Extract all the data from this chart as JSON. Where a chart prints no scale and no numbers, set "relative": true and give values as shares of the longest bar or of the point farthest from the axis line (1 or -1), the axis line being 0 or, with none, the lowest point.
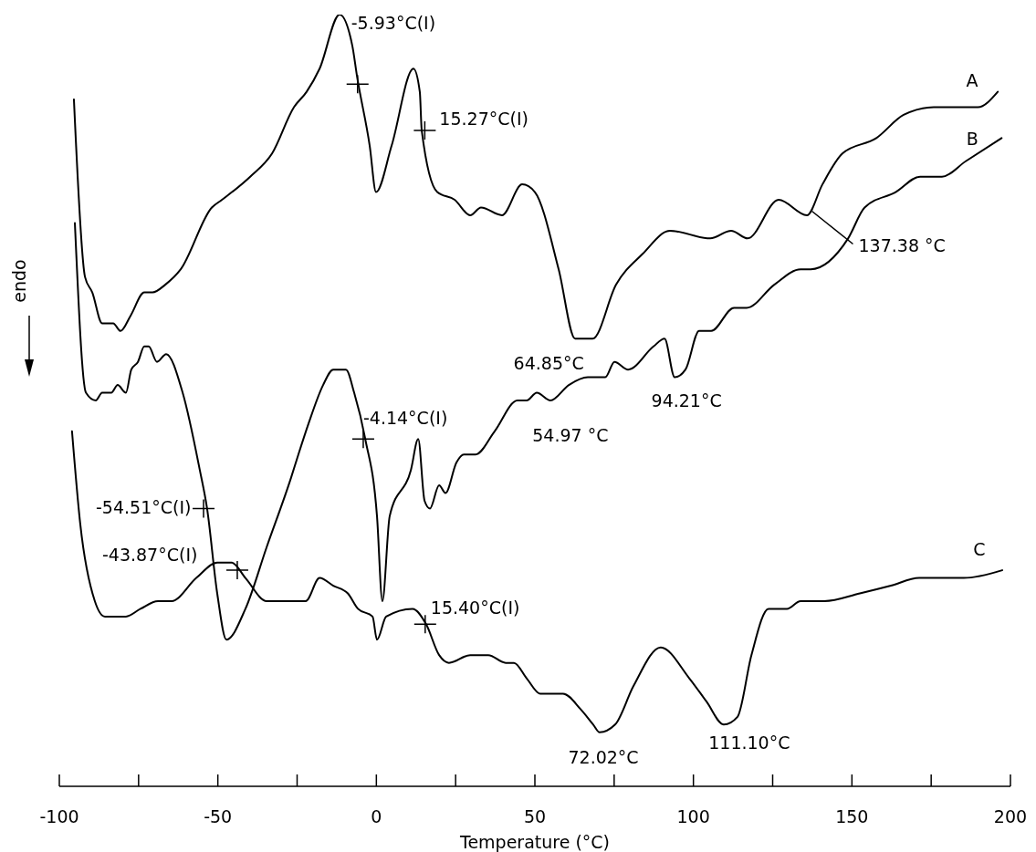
{
  "chart_data": {
    "type": "line",
    "relative": true,
    "xlabel": "Temperature (°C)",
    "ylabel": "endo",
    "xlim": [
      -100,
      200
    ],
    "xticks": [
      -100,
      {
        "value": -75,
        "label": null
      },
      -50,
      {
        "value": -25,
        "label": null
      },
      0,
      {
        "value": 25,
        "label": null
      },
      50,
      {
        "value": 75,
        "label": null
      },
      100,
      {
        "value": 125,
        "label": null
      },
      150,
      {
        "value": 175,
        "label": null
      },
      200
    ],
    "series": [
      {
        "name": "A",
        "color": "#000000",
        "x": [
          -95.4,
          -91.9,
          -89.6,
          -86.5,
          -83.0,
          -80.7,
          -77.5,
          -73.2,
          -70.6,
          -66.6,
          -61.7,
          -51.9,
          -48.7,
          -39.8,
          -32.9,
          -26.0,
          -22.0,
          -17.9,
          -11.6,
          -7.6,
          -6.1,
          -2.1,
          -0.1,
          4.8,
          11.7,
          13.7,
          14.3,
          19.2,
          24.7,
          29.6,
          33.0,
          39.6,
          46.0,
          50.0,
          57.5,
          62.7,
          65.6,
          68.2,
          75.6,
          84.0,
          92.6,
          105.3,
          111.9,
          117.1,
          126.9,
          135.8,
          140.7,
          147.0,
          157.7,
          166.3,
          175.8,
          189.7,
          196.0
        ],
        "values": [
          0.89,
          0.66,
          0.64,
          0.6,
          0.6,
          0.59,
          0.61,
          0.64,
          0.64,
          0.65,
          0.67,
          0.75,
          0.76,
          0.79,
          0.82,
          0.88,
          0.9,
          0.93,
          1,
          0.96,
          0.92,
          0.83,
          0.77,
          0.83,
          0.93,
          0.9,
          0.85,
          0.77,
          0.76,
          0.74,
          0.75,
          0.74,
          0.78,
          0.77,
          0.67,
          0.58,
          0.58,
          0.58,
          0.65,
          0.69,
          0.72,
          0.71,
          0.72,
          0.71,
          0.76,
          0.74,
          0.78,
          0.82,
          0.84,
          0.87,
          0.88,
          0.88,
          0.9
        ]
      },
      {
        "name": "B",
        "color": "#000000",
        "x": [
          -95.1,
          -91.6,
          -88.5,
          -86.5,
          -83.6,
          -81.6,
          -79.0,
          -77.3,
          -75.2,
          -73.2,
          -71.8,
          -69.2,
          -66.3,
          -61.1,
          -55.7,
          -53.4,
          -50.2,
          -47.3,
          -41.3,
          -34.6,
          -26.9,
          -24.6,
          -21.4,
          -16.8,
          -13.6,
          -9.6,
          -7.0,
          -3.5,
          0.2,
          1.9,
          4.2,
          10.9,
          13.2,
          15.2,
          16.9,
          19.8,
          21.8,
          25.3,
          27.6,
          31.3,
          37.3,
          44.5,
          47.4,
          50.6,
          54.9,
          60.7,
          66.7,
          72.2,
          75.1,
          79.4,
          87.4,
          90.9,
          94.1,
          97.5,
          101.8,
          105.6,
          112.8,
          116.8,
          125.5,
          133.8,
          137.0,
          148.8,
          154.0,
          163.8,
          171.5,
          178.4,
          185.9,
          197.2
        ],
        "values": [
          0.73,
          0.51,
          0.5,
          0.51,
          0.51,
          0.52,
          0.51,
          0.54,
          0.55,
          0.57,
          0.57,
          0.55,
          0.56,
          0.51,
          0.41,
          0.36,
          0.25,
          0.19,
          0.23,
          0.31,
          0.4,
          0.43,
          0.47,
          0.52,
          0.54,
          0.54,
          0.51,
          0.45,
          0.35,
          0.24,
          0.35,
          0.41,
          0.45,
          0.37,
          0.36,
          0.39,
          0.38,
          0.42,
          0.43,
          0.43,
          0.46,
          0.5,
          0.5,
          0.51,
          0.5,
          0.52,
          0.53,
          0.53,
          0.55,
          0.54,
          0.57,
          0.58,
          0.53,
          0.54,
          0.59,
          0.59,
          0.62,
          0.62,
          0.65,
          0.67,
          0.67,
          0.71,
          0.75,
          0.77,
          0.79,
          0.79,
          0.81,
          0.84
        ]
      },
      {
        "name": "C",
        "color": "#000000",
        "x": [
          -96.0,
          -93.4,
          -88.8,
          -85.6,
          -82.1,
          -79.0,
          -74.4,
          -68.9,
          -64.6,
          -56.8,
          -50.2,
          -45.6,
          -41.3,
          -34.6,
          -30.0,
          -22.3,
          -17.9,
          -13.6,
          -9.0,
          -5.8,
          -1.2,
          0.2,
          3.1,
          11.4,
          15.7,
          19.8,
          22.9,
          29.6,
          35.3,
          40.8,
          43.4,
          47.4,
          51.7,
          54.6,
          58.9,
          64.4,
          68.4,
          70.4,
          75.3,
          81.1,
          89.7,
          98.7,
          104.1,
          109.6,
          113.9,
          118.3,
          123.7,
          129.5,
          133.8,
          141.3,
          152.5,
          162.3,
          171.2,
          174.4,
          185.3,
          197.4
        ],
        "values": [
          0.46,
          0.34,
          0.24,
          0.22,
          0.22,
          0.22,
          0.23,
          0.24,
          0.24,
          0.27,
          0.29,
          0.29,
          0.27,
          0.24,
          0.24,
          0.24,
          0.27,
          0.26,
          0.25,
          0.23,
          0.22,
          0.19,
          0.22,
          0.23,
          0.21,
          0.17,
          0.16,
          0.17,
          0.17,
          0.16,
          0.16,
          0.14,
          0.12,
          0.12,
          0.12,
          0.1,
          0.08,
          0.07,
          0.08,
          0.13,
          0.18,
          0.14,
          0.11,
          0.08,
          0.09,
          0.17,
          0.23,
          0.23,
          0.24,
          0.24,
          0.25,
          0.26,
          0.27,
          0.27,
          0.27,
          0.28
        ]
      }
    ],
    "annotations": [
      {
        "text": "-5.93°C(I)",
        "x": -5.93,
        "y": 0.91
      },
      {
        "text": "15.27°C(I)",
        "x": 15.27,
        "y": 0.85
      },
      {
        "text": "137.38 °C",
        "x": 137.38,
        "y": 0.75
      },
      {
        "text": "64.85°C",
        "x": 64.85,
        "y": 0.58
      },
      {
        "text": "-54.51°C(I)",
        "x": -54.51,
        "y": 0.36
      },
      {
        "text": "-4.14°C(I)",
        "x": -4.14,
        "y": 0.45
      },
      {
        "text": "54.97 °C",
        "x": 54.97,
        "y": 0.5
      },
      {
        "text": "94.21°C",
        "x": 94.21,
        "y": 0.53
      },
      {
        "text": "-43.87°C(I)",
        "x": -43.87,
        "y": 0.28
      },
      {
        "text": "15.40°C(I)",
        "x": 15.4,
        "y": 0.21
      },
      {
        "text": "72.02°C",
        "x": 72.02,
        "y": 0.07
      },
      {
        "text": "111.10°C",
        "x": 111.1,
        "y": 0.08
      }
    ]
  }
}
